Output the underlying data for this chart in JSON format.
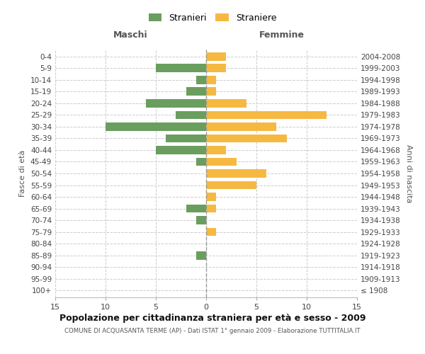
{
  "age_groups": [
    "100+",
    "95-99",
    "90-94",
    "85-89",
    "80-84",
    "75-79",
    "70-74",
    "65-69",
    "60-64",
    "55-59",
    "50-54",
    "45-49",
    "40-44",
    "35-39",
    "30-34",
    "25-29",
    "20-24",
    "15-19",
    "10-14",
    "5-9",
    "0-4"
  ],
  "birth_years": [
    "≤ 1908",
    "1909-1913",
    "1914-1918",
    "1919-1923",
    "1924-1928",
    "1929-1933",
    "1934-1938",
    "1939-1943",
    "1944-1948",
    "1949-1953",
    "1954-1958",
    "1959-1963",
    "1964-1968",
    "1969-1973",
    "1974-1978",
    "1979-1983",
    "1984-1988",
    "1989-1993",
    "1994-1998",
    "1999-2003",
    "2004-2008"
  ],
  "males": [
    0,
    0,
    0,
    -1,
    0,
    0,
    -1,
    -2,
    0,
    0,
    0,
    -1,
    -5,
    -4,
    -10,
    -3,
    -6,
    -2,
    -1,
    -5,
    0
  ],
  "females": [
    0,
    0,
    0,
    0,
    0,
    1,
    0,
    1,
    1,
    5,
    6,
    3,
    2,
    8,
    7,
    12,
    4,
    1,
    1,
    2,
    2
  ],
  "male_color": "#6a9e5e",
  "female_color": "#f5b942",
  "title": "Popolazione per cittadinanza straniera per età e sesso - 2009",
  "subtitle": "COMUNE DI ACQUASANTA TERME (AP) - Dati ISTAT 1° gennaio 2009 - Elaborazione TUTTITALIA.IT",
  "ylabel_left": "Fasce di età",
  "ylabel_right": "Anni di nascita",
  "xlabel_left": "Maschi",
  "xlabel_right": "Femmine",
  "legend_male": "Stranieri",
  "legend_female": "Straniere",
  "xlim": 15,
  "background_color": "#ffffff",
  "grid_color": "#cccccc",
  "bar_height": 0.72
}
